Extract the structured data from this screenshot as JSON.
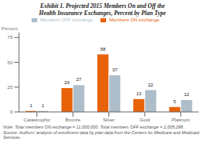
{
  "chart_data": {
    "type": "bar",
    "title": "Exhibit 1. Projected 2015 Members On and Off the",
    "subtitle": "Health Insurance Exchanges, Percent by Plan Type",
    "ylabel": "Percent",
    "categories": [
      "Catastrophic",
      "Bronze",
      "Silver",
      "Gold",
      "Platinum"
    ],
    "series": [
      {
        "name": "Members ON exchange",
        "color": "#E8620A",
        "values": [
          1,
          24,
          58,
          13,
          5
        ]
      },
      {
        "name": "Members OFF exchange",
        "color": "#ADBDCA",
        "values": [
          1,
          27,
          37,
          22,
          12
        ]
      }
    ],
    "ylim": [
      0,
      80
    ],
    "yticks": [
      0,
      25,
      50,
      75
    ],
    "grid": false,
    "legend": "top",
    "data_labels": true,
    "annotations": [
      "Note: Total members ON exchange = 11,000,000. Total members OFF exchange = 2,005,298.",
      "Source: Authors' analysis of enrollment data by plan data from the Centers for Medicare and Medicaid Services."
    ]
  }
}
